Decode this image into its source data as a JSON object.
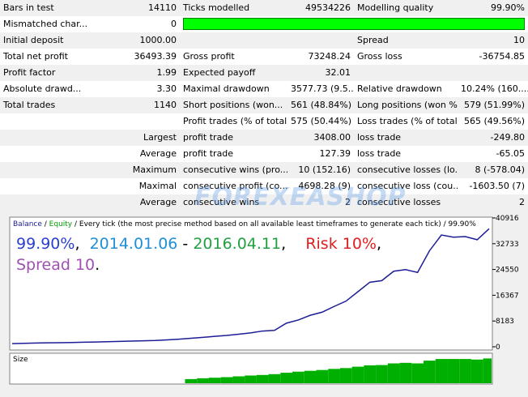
{
  "table": {
    "rows": [
      {
        "a": "Bars in test",
        "b": "14110",
        "c": "Ticks modelled",
        "d": "49534226",
        "e": "Modelling quality",
        "f": "99.90%"
      },
      {
        "a": "Mismatched char...",
        "b": "0",
        "bar_color": "#00ff00"
      },
      {
        "a": "Initial deposit",
        "b": "1000.00",
        "e": "Spread",
        "f": "10"
      },
      {
        "a": "Total net profit",
        "b": "36493.39",
        "c": "Gross profit",
        "d": "73248.24",
        "e": "Gross loss",
        "f": "-36754.85"
      },
      {
        "a": "Profit factor",
        "b": "1.99",
        "c": "Expected payoff",
        "d": "32.01"
      },
      {
        "a": "Absolute drawd...",
        "b": "3.30",
        "c": "Maximal drawdown",
        "d": "3577.73 (9.5...",
        "e": "Relative drawdown",
        "f": "10.24% (160...."
      },
      {
        "a": "Total trades",
        "b": "1140",
        "c": "Short positions (won...",
        "d": "561 (48.84%)",
        "e": "Long positions (won %)",
        "f": "579 (51.99%)"
      },
      {
        "c": "Profit trades (% of total)",
        "d": "575 (50.44%)",
        "e": "Loss trades (% of total)",
        "f": "565 (49.56%)"
      },
      {
        "a": "Largest",
        "c": "profit trade",
        "d": "3408.00",
        "e": "loss trade",
        "f": "-249.80"
      },
      {
        "a": "Average",
        "c": "profit trade",
        "d": "127.39",
        "e": "loss trade",
        "f": "-65.05"
      },
      {
        "a": "Maximum",
        "c": "consecutive wins (pro...",
        "d": "10 (152.16)",
        "e": "consecutive losses (lo...",
        "f": "8 (-578.04)"
      },
      {
        "a": "Maximal",
        "c": "consecutive profit (co...",
        "d": "4698.28 (9)",
        "e": "consecutive loss (cou...",
        "f": "-1603.50 (7)"
      },
      {
        "a": "Average",
        "c": "consecutive wins",
        "d": "2",
        "e": "consecutive losses",
        "f": "2"
      }
    ]
  },
  "watermark": "FOREXEASHOP",
  "chart_data": [
    {
      "type": "line",
      "equity_label": "Equity",
      "equity_color": "#00a000",
      "subtitle": " / Every tick (the most precise method based on all available least timeframes to generate each tick) / 99.90%",
      "series": [
        {
          "name": "Balance",
          "color": "#1c1c96",
          "values": [
            1000,
            1100,
            1200,
            1250,
            1300,
            1350,
            1450,
            1500,
            1600,
            1700,
            1800,
            1900,
            2000,
            2200,
            2400,
            2700,
            3000,
            3300,
            3600,
            4000,
            4400,
            5000,
            5200,
            7500,
            8500,
            10000,
            11000,
            12800,
            14500,
            17500,
            20500,
            21000,
            24000,
            24500,
            23600,
            30500,
            35500,
            34800,
            35000,
            34000,
            37493
          ]
        }
      ],
      "ylim": [
        0,
        40916
      ],
      "yticks": [
        0,
        8183,
        16367,
        24550,
        32733,
        40916
      ],
      "annotations": [
        [
          {
            "text": "99.90%",
            "color": "#2a3fd0"
          },
          {
            "text": ",  ",
            "color": "#000000"
          },
          {
            "text": "2014.01.06",
            "color": "#1e8fd8"
          },
          {
            "text": " - ",
            "color": "#000000"
          },
          {
            "text": "2016.04.11",
            "color": "#22a040"
          },
          {
            "text": ",    ",
            "color": "#000000"
          },
          {
            "text": "Risk 10%",
            "color": "#e02020"
          },
          {
            "text": ",",
            "color": "#000000"
          }
        ],
        [
          {
            "text": "Spread 10",
            "color": "#a050b0"
          },
          {
            "text": ".",
            "color": "#000000"
          }
        ]
      ]
    },
    {
      "type": "bar",
      "title": "Size",
      "color": "#00b000",
      "ylim": [
        0,
        100
      ],
      "values": [
        0,
        0,
        0,
        0,
        0,
        0,
        0,
        0,
        0,
        0,
        0,
        0,
        0,
        0,
        0,
        15,
        18,
        20,
        22,
        25,
        28,
        30,
        33,
        38,
        42,
        45,
        48,
        52,
        55,
        60,
        65,
        66,
        72,
        74,
        72,
        82,
        88,
        88,
        88,
        86,
        90
      ]
    }
  ]
}
